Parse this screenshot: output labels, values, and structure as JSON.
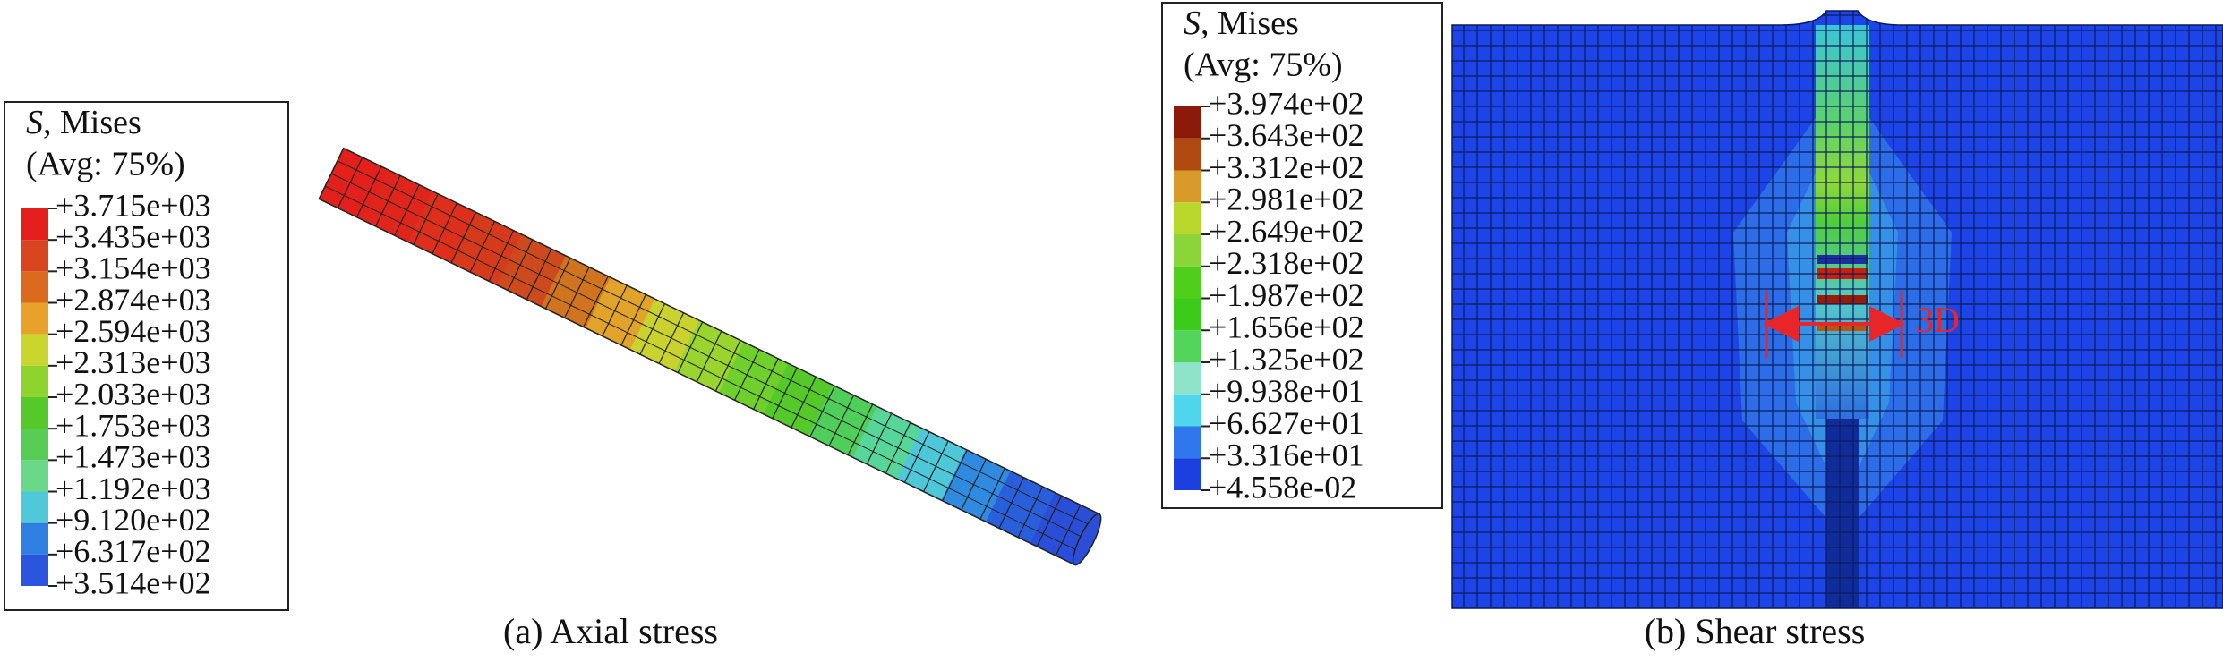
{
  "panels": [
    {
      "legend": {
        "symbol": "S",
        "title": ", Mises",
        "subtitle": "(Avg: 75%)",
        "labels": [
          "+3.715e+03",
          "+3.435e+03",
          "+3.154e+03",
          "+2.874e+03",
          "+2.594e+03",
          "+2.313e+03",
          "+2.033e+03",
          "+1.753e+03",
          "+1.473e+03",
          "+1.192e+03",
          "+9.120e+02",
          "+6.317e+02",
          "+3.514e+02"
        ]
      },
      "caption": "(a) Axial stress"
    },
    {
      "legend": {
        "symbol": "S",
        "title": ", Mises",
        "subtitle": "(Avg: 75%)",
        "labels": [
          "+3.974e+02",
          "+3.643e+02",
          "+3.312e+02",
          "+2.981e+02",
          "+2.649e+02",
          "+2.318e+02",
          "+1.987e+02",
          "+1.656e+02",
          "+1.325e+02",
          "+9.938e+01",
          "+6.627e+01",
          "+3.316e+01",
          "+4.558e-02"
        ]
      },
      "caption": "(b) Shear stress",
      "annotation": "3D"
    }
  ]
}
